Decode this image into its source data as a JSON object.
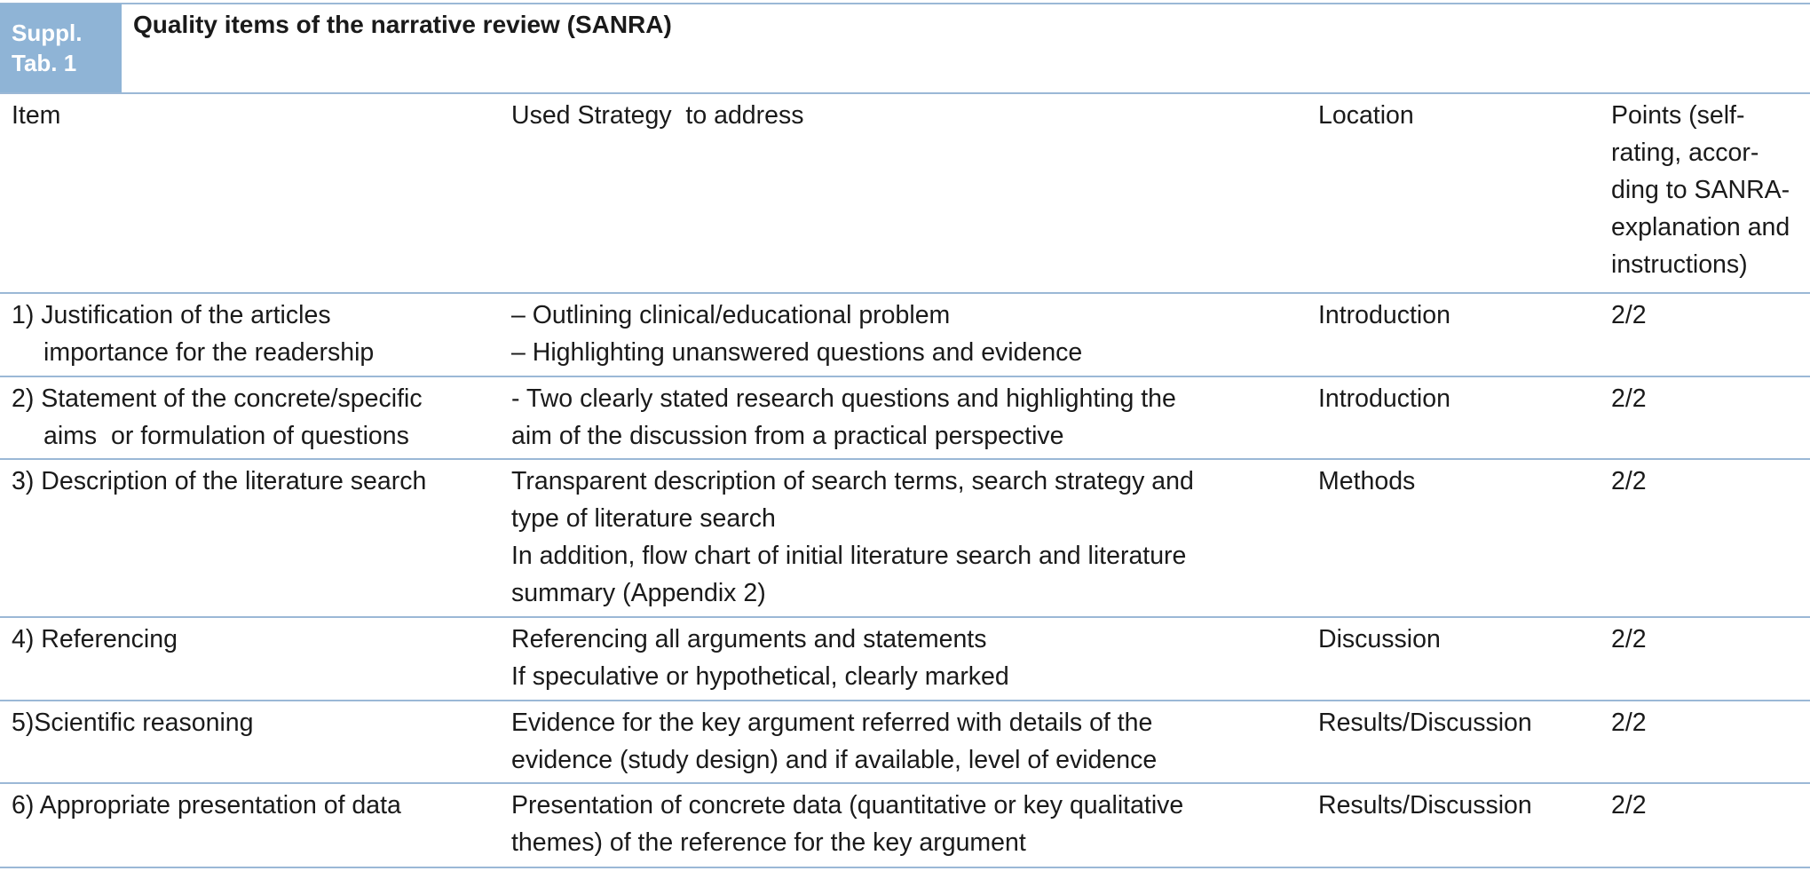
{
  "header": {
    "label": [
      "Suppl.",
      "Tab. 1"
    ],
    "title": "Quality items of the narrative review (SANRA)"
  },
  "table": {
    "columns": [
      [
        "Item"
      ],
      [
        "Used Strategy  to address"
      ],
      [
        "Location"
      ],
      [
        "Points (self-",
        "rating, accor-",
        "ding to SANRA-",
        "explanation and",
        "instructions)"
      ]
    ],
    "rows": [
      [
        [
          "1) Justification of the articles",
          "importance for the readership"
        ],
        [
          "– Outlining clinical/educational problem",
          "– Highlighting unanswered questions and evidence"
        ],
        [
          "Introduction"
        ],
        [
          "2/2"
        ]
      ],
      [
        [
          "2) Statement of the concrete/specific",
          "aims  or formulation of questions"
        ],
        [
          "- Two clearly stated research questions and highlighting the",
          "aim of the discussion from a practical perspective"
        ],
        [
          "Introduction"
        ],
        [
          "2/2"
        ]
      ],
      [
        [
          "3) Description of the literature search"
        ],
        [
          "Transparent description of search terms, search strategy and",
          "type of literature search",
          "In addition, flow chart of initial literature search and literature",
          "summary (Appendix 2)"
        ],
        [
          "Methods"
        ],
        [
          "2/2"
        ]
      ],
      [
        [
          "4) Referencing"
        ],
        [
          "Referencing all arguments and statements",
          "If speculative or hypothetical, clearly marked"
        ],
        [
          "Discussion"
        ],
        [
          "2/2"
        ]
      ],
      [
        [
          "5)Scientific reasoning"
        ],
        [
          "Evidence for the key argument referred with details of the",
          "evidence (study design) and if available, level of evidence"
        ],
        [
          "Results/Discussion"
        ],
        [
          "2/2"
        ]
      ],
      [
        [
          "6) Appropriate presentation of data"
        ],
        [
          "Presentation of concrete data (quantitative or key qualitative",
          "themes) of the reference for the key argument"
        ],
        [
          "Results/Discussion"
        ],
        [
          "2/2"
        ]
      ]
    ]
  }
}
